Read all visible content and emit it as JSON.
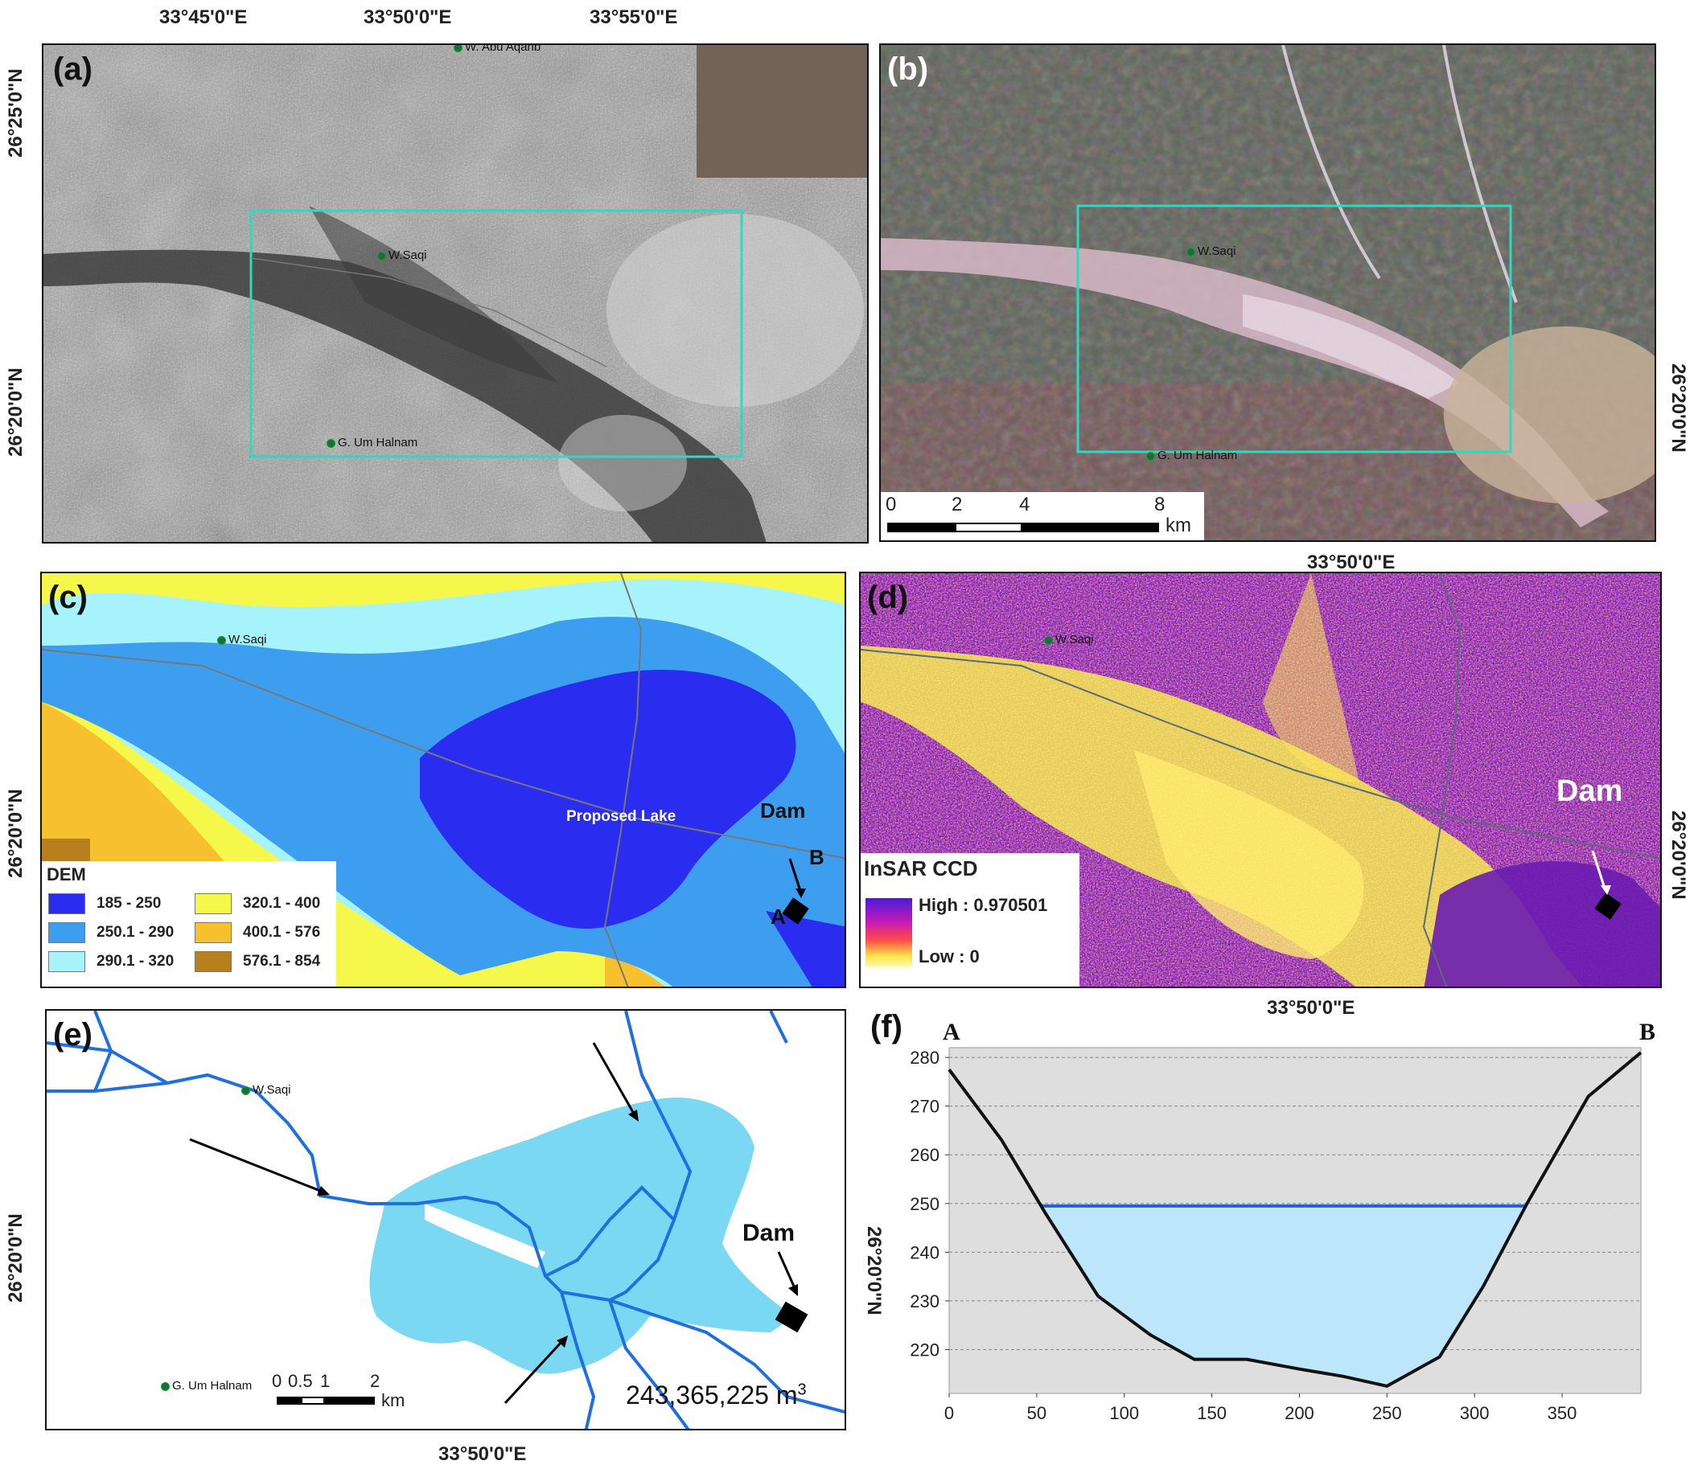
{
  "figure": {
    "panel_letters": [
      "(a)",
      "(b)",
      "(c)",
      "(d)",
      "(e)",
      "(f)"
    ],
    "coords_top": [
      "33°45'0\"E",
      "33°50'0\"E",
      "33°55'0\"E"
    ],
    "coord_lat_north": "26°25'0\"N",
    "coord_lat_mid": "26°20'0\"N",
    "coord_lon_mid": "33°50'0\"E"
  },
  "places": {
    "abu_aqarib": "W. Abu Aqarib",
    "saqi": "W.Saqi",
    "um_halnam_ab": "G. Um Halnam",
    "um_halnam_e": "G. Um Halnam"
  },
  "panel_b": {
    "scale_ticks": [
      "0",
      "2",
      "4",
      "8"
    ],
    "scale_unit": "km"
  },
  "panel_c": {
    "lake_label": "Proposed Lake",
    "dam_label": "Dam",
    "point_a": "A",
    "point_b": "B",
    "legend_title": "DEM",
    "legend_items": [
      {
        "label": "185 - 250",
        "color": "#2a2cf0"
      },
      {
        "label": "250.1 - 290",
        "color": "#3d9ef0"
      },
      {
        "label": "290.1 - 320",
        "color": "#a6f3fb"
      },
      {
        "label": "320.1 - 400",
        "color": "#f5f74a"
      },
      {
        "label": "400.1 - 576",
        "color": "#f7c02e"
      },
      {
        "label": "576.1 - 854",
        "color": "#b8801c"
      }
    ]
  },
  "panel_d": {
    "dam_label": "Dam",
    "legend_title": "InSAR CCD",
    "high_label": "High : 0.970501",
    "low_label": "Low : 0"
  },
  "panel_e": {
    "dam_label": "Dam",
    "volume_label": "243,365,225 m",
    "volume_sup": "3",
    "scale_ticks": [
      "0",
      "0.5",
      "1",
      "2"
    ],
    "scale_unit": "km"
  },
  "chart_data": {
    "type": "area",
    "title": "",
    "xlabel": "",
    "ylabel": "",
    "xlim": [
      0,
      395
    ],
    "ylim": [
      211,
      282
    ],
    "x_ticks": [
      0,
      50,
      100,
      150,
      200,
      250,
      300,
      350
    ],
    "y_ticks": [
      220,
      230,
      240,
      250,
      260,
      270,
      280
    ],
    "grid": true,
    "end_labels": [
      "A",
      "B"
    ],
    "water_level": 249.5,
    "series": [
      {
        "x": [
          0,
          30,
          55,
          85,
          115,
          140,
          170,
          200,
          225,
          250,
          280,
          305,
          330,
          365,
          395
        ],
        "values": [
          277.5,
          263,
          248,
          231,
          223,
          218,
          218,
          216,
          214.5,
          212.5,
          218.5,
          233,
          250,
          272,
          281
        ]
      }
    ]
  },
  "colors": {
    "box_cyan": "#2fd8c0",
    "lake_fill": "#7ad8f3",
    "stream": "#1f6fe0",
    "profile_water": "#bde6fb",
    "profile_line": "#2a5bd0"
  }
}
